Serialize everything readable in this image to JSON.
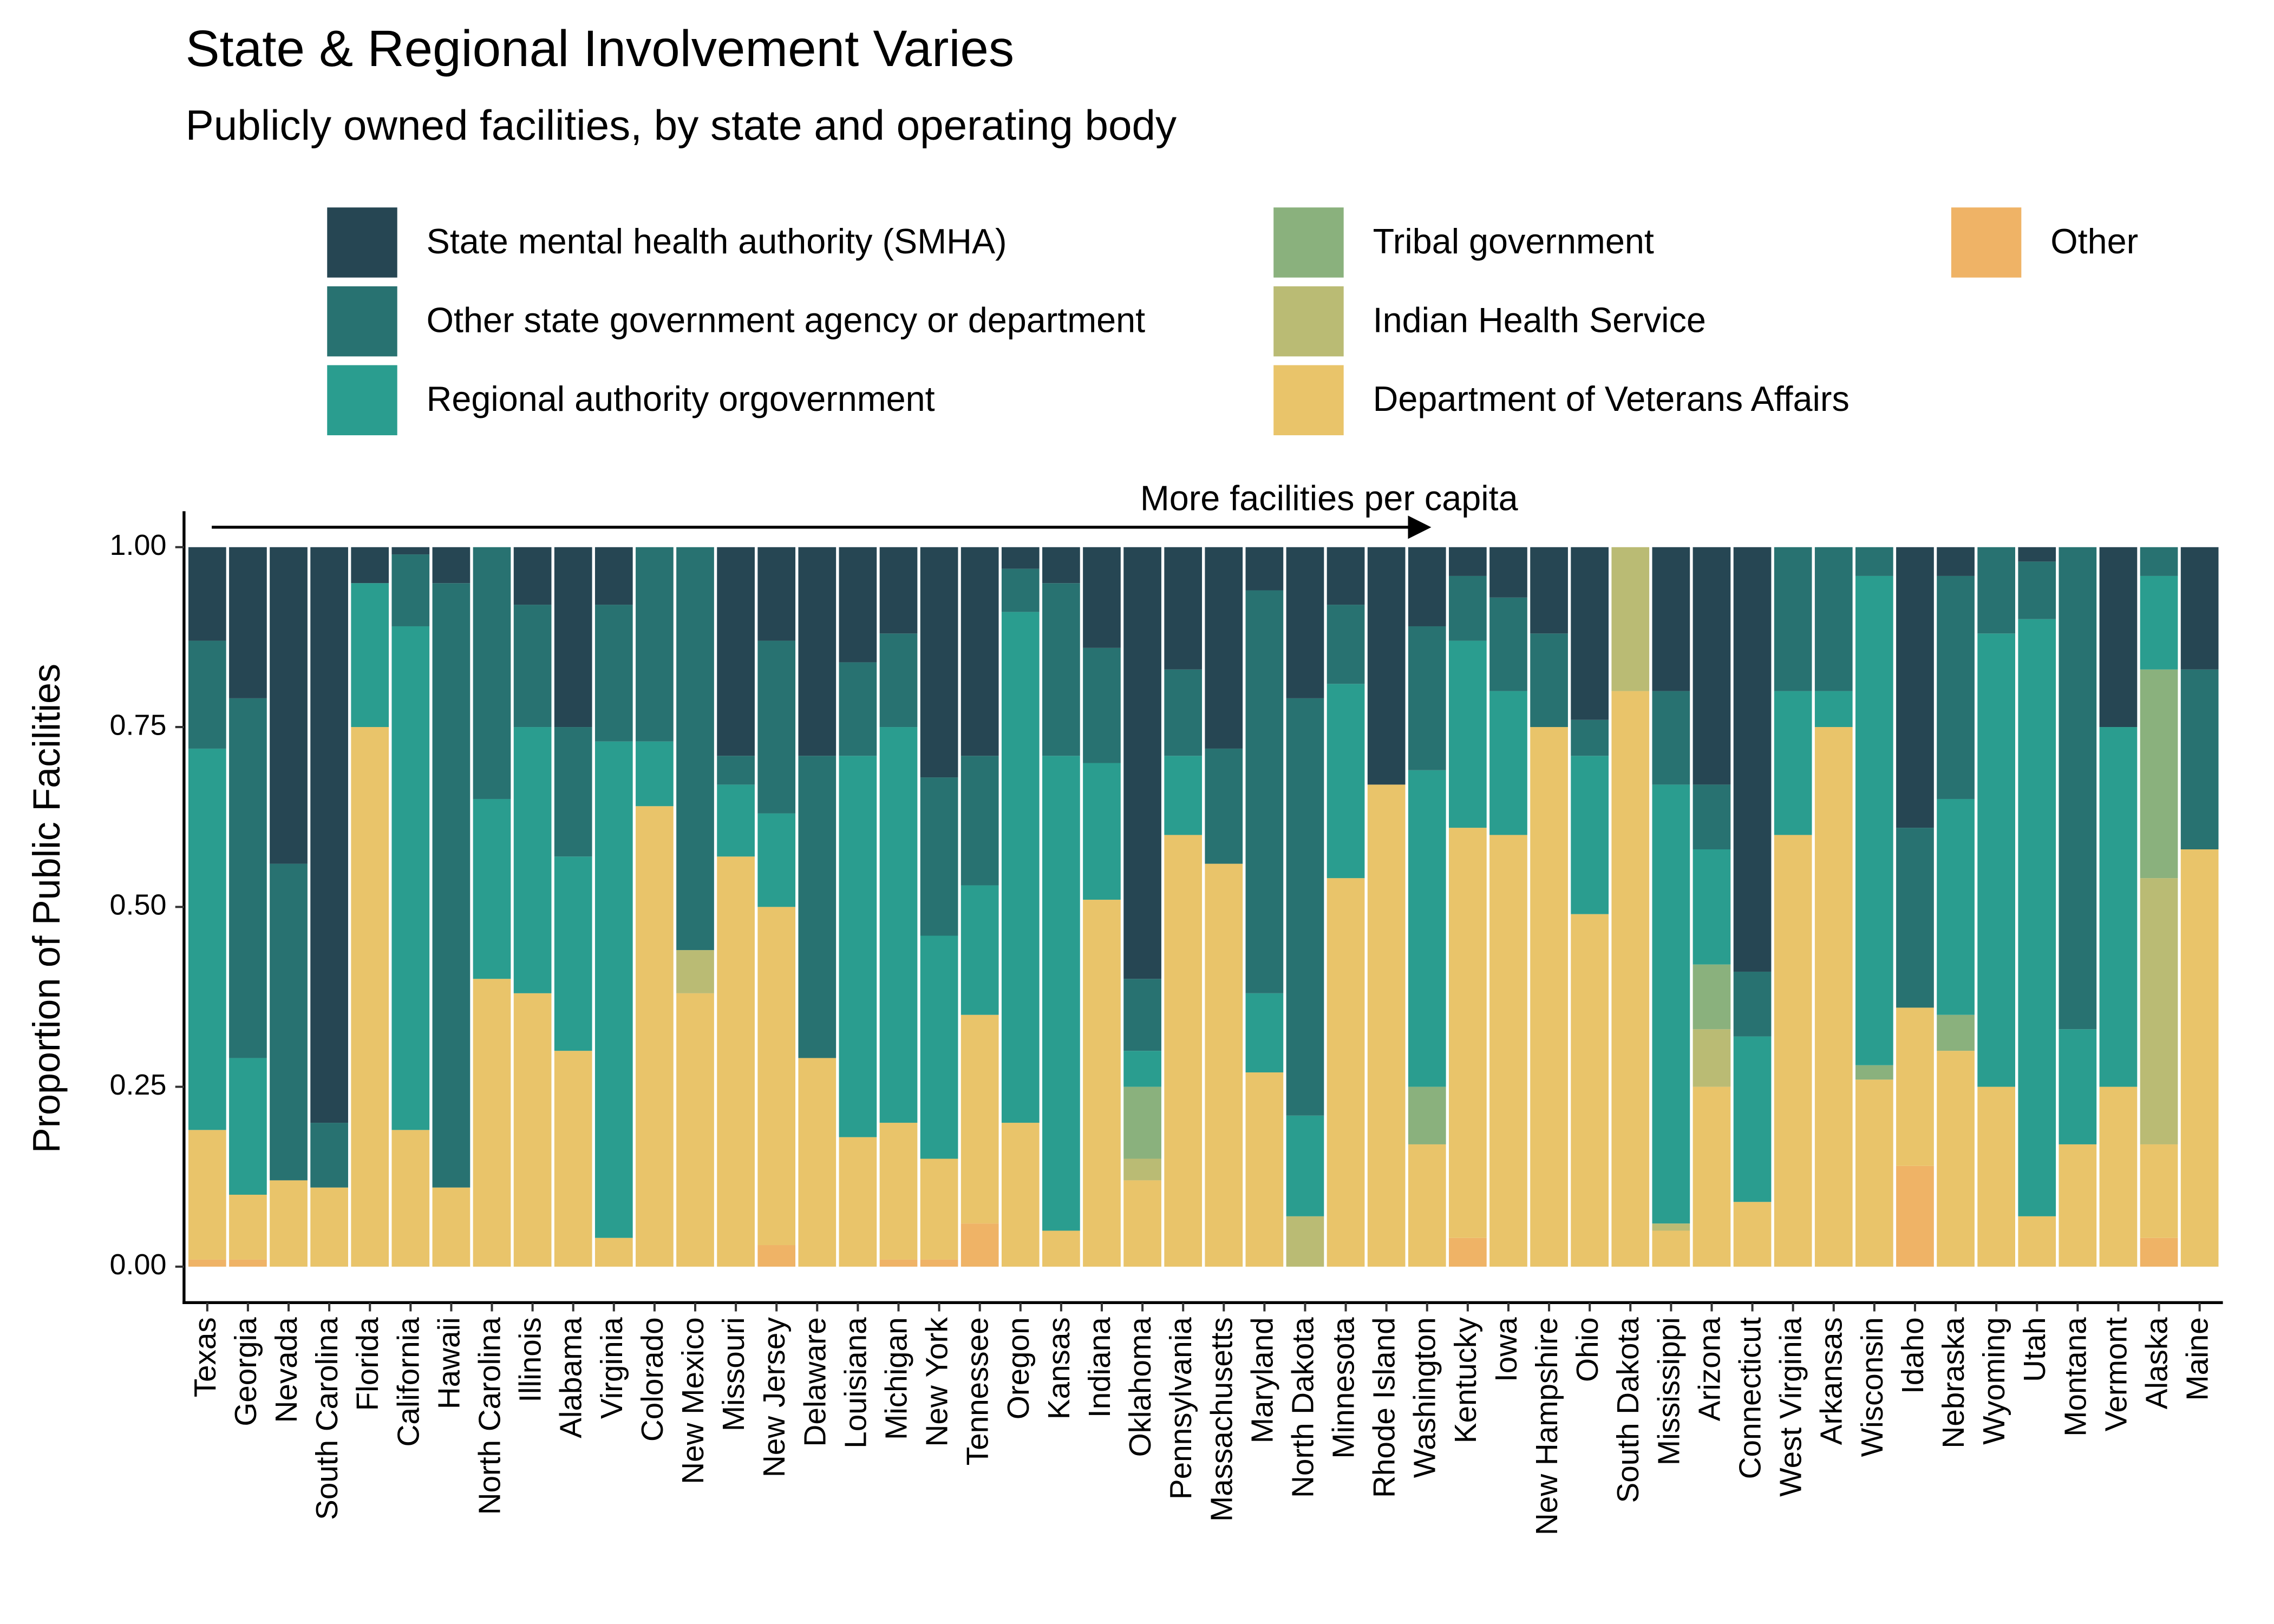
{
  "chart_data": {
    "type": "stacked_bar",
    "title": "State & Regional Involvement Varies",
    "subtitle": "Publicly owned facilities, by state and operating body",
    "y_label": "Proportion of Public Facilities",
    "annotation": "More facilities per capita",
    "legend_position": "top",
    "ylim": [
      -0.05,
      1.05
    ],
    "yticks": [
      {
        "value": 0,
        "label": "0.00"
      },
      {
        "value": 0.25,
        "label": "0.25"
      },
      {
        "value": 0.5,
        "label": "0.50"
      },
      {
        "value": 0.75,
        "label": "0.75"
      },
      {
        "value": 1,
        "label": "1.00"
      }
    ],
    "categories": [
      "Texas",
      "Georgia",
      "Nevada",
      "South Carolina",
      "Florida",
      "California",
      "Hawaii",
      "North Carolina",
      "Illinois",
      "Alabama",
      "Virginia",
      "Colorado",
      "New Mexico",
      "Missouri",
      "New Jersey",
      "Delaware",
      "Louisiana",
      "Michigan",
      "New York",
      "Tennessee",
      "Oregon",
      "Kansas",
      "Indiana",
      "Oklahoma",
      "Pennsylvania",
      "Massachusetts",
      "Maryland",
      "North Dakota",
      "Minnesota",
      "Rhode Island",
      "Washington",
      "Kentucky",
      "Iowa",
      "New Hampshire",
      "Ohio",
      "South Dakota",
      "Mississippi",
      "Arizona",
      "Connecticut",
      "West Virginia",
      "Arkansas",
      "Wisconsin",
      "Idaho",
      "Nebraska",
      "Wyoming",
      "Utah",
      "Montana",
      "Vermont",
      "Alaska",
      "Maine"
    ],
    "series": [
      {
        "name": "State mental health authority (SMHA)",
        "color": "#264653",
        "values": [
          0.13,
          0.21,
          0.44,
          0.8,
          0.05,
          0.01,
          0.05,
          0,
          0.08,
          0.25,
          0.08,
          0,
          0,
          0.29,
          0.13,
          0.29,
          0.16,
          0.12,
          0.32,
          0.29,
          0.03,
          0.05,
          0.14,
          0.6,
          0.17,
          0.28,
          0.06,
          0.21,
          0.08,
          0.33,
          0.11,
          0.04,
          0.07,
          0.12,
          0.24,
          0,
          0.2,
          0.33,
          0.59,
          0,
          0,
          0,
          0.39,
          0.04,
          0,
          0.02,
          0,
          0.25,
          0,
          0.17
        ]
      },
      {
        "name": "Other state government agency or department",
        "color": "#287271",
        "values": [
          0.15,
          0.5,
          0.44,
          0.09,
          0,
          0.1,
          0.84,
          0.35,
          0.17,
          0.18,
          0.19,
          0.27,
          0.56,
          0.04,
          0.24,
          0.42,
          0.13,
          0.13,
          0.22,
          0.18,
          0.06,
          0.24,
          0.16,
          0.1,
          0.12,
          0.16,
          0.56,
          0.58,
          0.11,
          0,
          0.2,
          0.09,
          0.13,
          0.13,
          0.05,
          0,
          0.13,
          0.09,
          0.09,
          0.2,
          0.2,
          0.04,
          0.25,
          0.31,
          0.12,
          0.08,
          0.67,
          0,
          0.04,
          0.25
        ]
      },
      {
        "name": "Regional authority orgovernment",
        "color": "#2a9d8f",
        "values": [
          0.53,
          0.19,
          0,
          0,
          0.2,
          0.7,
          0,
          0.25,
          0.37,
          0.27,
          0.69,
          0.09,
          0,
          0.1,
          0.13,
          0,
          0.53,
          0.55,
          0.31,
          0.18,
          0.71,
          0.66,
          0.19,
          0.05,
          0.11,
          0,
          0.11,
          0.14,
          0.27,
          0,
          0.44,
          0.26,
          0.2,
          0,
          0.22,
          0,
          0.61,
          0.16,
          0.23,
          0.2,
          0.05,
          0.68,
          0,
          0.3,
          0.63,
          0.83,
          0.16,
          0.5,
          0.13,
          0
        ]
      },
      {
        "name": "Tribal government",
        "color": "#8ab17d",
        "values": [
          0,
          0,
          0,
          0,
          0,
          0,
          0,
          0,
          0,
          0,
          0,
          0,
          0,
          0,
          0,
          0,
          0,
          0,
          0,
          0,
          0,
          0,
          0,
          0.1,
          0,
          0,
          0,
          0,
          0,
          0,
          0.08,
          0,
          0,
          0,
          0,
          0,
          0,
          0.09,
          0,
          0,
          0,
          0.02,
          0,
          0.05,
          0,
          0,
          0,
          0,
          0.29,
          0
        ]
      },
      {
        "name": "Indian Health Service",
        "color": "#babb74",
        "values": [
          0,
          0,
          0,
          0,
          0,
          0,
          0,
          0,
          0,
          0,
          0,
          0,
          0.06,
          0,
          0,
          0,
          0,
          0,
          0,
          0,
          0,
          0,
          0,
          0.03,
          0,
          0,
          0,
          0.07,
          0,
          0,
          0,
          0,
          0,
          0,
          0,
          0.2,
          0.01,
          0.08,
          0,
          0,
          0,
          0,
          0,
          0,
          0,
          0,
          0,
          0,
          0.37,
          0
        ]
      },
      {
        "name": "Department of Veterans Affairs",
        "color": "#e9c46a",
        "values": [
          0.18,
          0.09,
          0.12,
          0.11,
          0.75,
          0.19,
          0.11,
          0.4,
          0.38,
          0.3,
          0.04,
          0.64,
          0.38,
          0.57,
          0.47,
          0.29,
          0.18,
          0.19,
          0.14,
          0.29,
          0.2,
          0.05,
          0.51,
          0.12,
          0.6,
          0.56,
          0.27,
          0,
          0.54,
          0.67,
          0.17,
          0.57,
          0.6,
          0.75,
          0.49,
          0.8,
          0.05,
          0.25,
          0.09,
          0.6,
          0.75,
          0.26,
          0.22,
          0.3,
          0.25,
          0.07,
          0.17,
          0.25,
          0.13,
          0.58
        ]
      },
      {
        "name": "Other",
        "color": "#efb366",
        "values": [
          0.01,
          0.01,
          0,
          0,
          0,
          0,
          0,
          0,
          0,
          0,
          0,
          0,
          0,
          0,
          0.03,
          0,
          0,
          0.01,
          0.01,
          0.06,
          0,
          0,
          0,
          0,
          0,
          0,
          0,
          0,
          0,
          0,
          0,
          0.04,
          0,
          0,
          0,
          0,
          0,
          0,
          0,
          0,
          0,
          0,
          0.14,
          0,
          0,
          0,
          0,
          0,
          0.04,
          0
        ]
      }
    ]
  }
}
